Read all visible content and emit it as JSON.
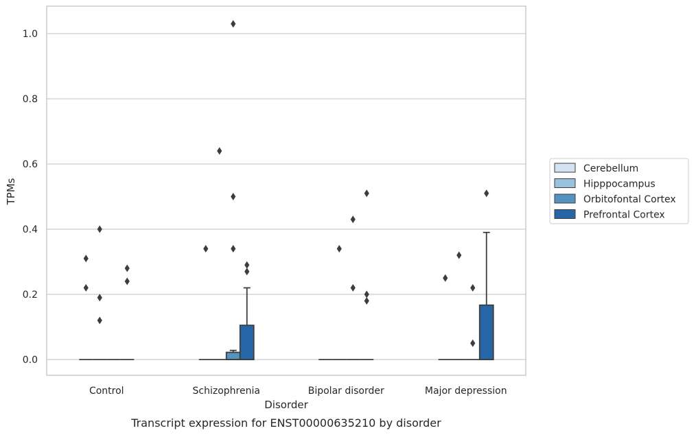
{
  "chart_data": {
    "type": "box",
    "title": "",
    "caption": "Transcript expression for ENST00000635210 by disorder",
    "xlabel": "Disorder",
    "ylabel": "TPMs",
    "ylim": [
      -0.05,
      1.08
    ],
    "yticks": [
      0.0,
      0.2,
      0.4,
      0.6,
      0.8,
      1.0
    ],
    "ytick_labels": [
      "0.0",
      "0.2",
      "0.4",
      "0.6",
      "0.8",
      "1.0"
    ],
    "grid": "horizontal",
    "legend_position": "right",
    "categories": [
      "Control",
      "Schizophrenia",
      "Bipolar disorder",
      "Major depression"
    ],
    "series": [
      {
        "name": "Cerebellum",
        "color": "#d4e3f1",
        "boxes": [
          {
            "q1": 0,
            "median": 0,
            "q3": 0,
            "whisker_low": 0,
            "whisker_high": 0,
            "outliers": [
              0.31,
              0.22
            ]
          },
          {
            "q1": 0,
            "median": 0,
            "q3": 0,
            "whisker_low": 0,
            "whisker_high": 0,
            "outliers": [
              0.34
            ]
          },
          {
            "q1": 0,
            "median": 0,
            "q3": 0,
            "whisker_low": 0,
            "whisker_high": 0,
            "outliers": []
          },
          {
            "q1": 0,
            "median": 0,
            "q3": 0,
            "whisker_low": 0,
            "whisker_high": 0,
            "outliers": [
              0.25
            ]
          }
        ]
      },
      {
        "name": "Hipppocampus",
        "color": "#9ac2dc",
        "boxes": [
          {
            "q1": 0,
            "median": 0,
            "q3": 0,
            "whisker_low": 0,
            "whisker_high": 0,
            "outliers": [
              0.4,
              0.19,
              0.12
            ]
          },
          {
            "q1": 0,
            "median": 0,
            "q3": 0,
            "whisker_low": 0,
            "whisker_high": 0,
            "outliers": [
              0.64
            ]
          },
          {
            "q1": 0,
            "median": 0,
            "q3": 0,
            "whisker_low": 0,
            "whisker_high": 0,
            "outliers": [
              0.34
            ]
          },
          {
            "q1": 0,
            "median": 0,
            "q3": 0,
            "whisker_low": 0,
            "whisker_high": 0,
            "outliers": [
              0.32
            ]
          }
        ]
      },
      {
        "name": "Orbitofontal Cortex",
        "color": "#5592be",
        "boxes": [
          {
            "q1": 0,
            "median": 0,
            "q3": 0,
            "whisker_low": 0,
            "whisker_high": 0,
            "outliers": []
          },
          {
            "q1": 0,
            "median": 0,
            "q3": 0.022,
            "whisker_low": 0,
            "whisker_high": 0.028,
            "outliers": [
              1.03,
              0.5,
              0.34
            ]
          },
          {
            "q1": 0,
            "median": 0,
            "q3": 0,
            "whisker_low": 0,
            "whisker_high": 0,
            "outliers": [
              0.43,
              0.22
            ]
          },
          {
            "q1": 0,
            "median": 0,
            "q3": 0,
            "whisker_low": 0,
            "whisker_high": 0,
            "outliers": [
              0.22,
              0.05
            ]
          }
        ]
      },
      {
        "name": "Prefrontal Cortex",
        "color": "#2766a6",
        "boxes": [
          {
            "q1": 0,
            "median": 0,
            "q3": 0,
            "whisker_low": 0,
            "whisker_high": 0,
            "outliers": [
              0.28,
              0.24
            ]
          },
          {
            "q1": 0,
            "median": 0,
            "q3": 0.105,
            "whisker_low": 0,
            "whisker_high": 0.22,
            "outliers": [
              0.29,
              0.27
            ]
          },
          {
            "q1": 0,
            "median": 0,
            "q3": 0,
            "whisker_low": 0,
            "whisker_high": 0,
            "outliers": [
              0.51,
              0.2,
              0.18
            ]
          },
          {
            "q1": 0,
            "median": 0,
            "q3": 0.167,
            "whisker_low": 0,
            "whisker_high": 0.39,
            "outliers": [
              0.51
            ]
          }
        ]
      }
    ]
  }
}
